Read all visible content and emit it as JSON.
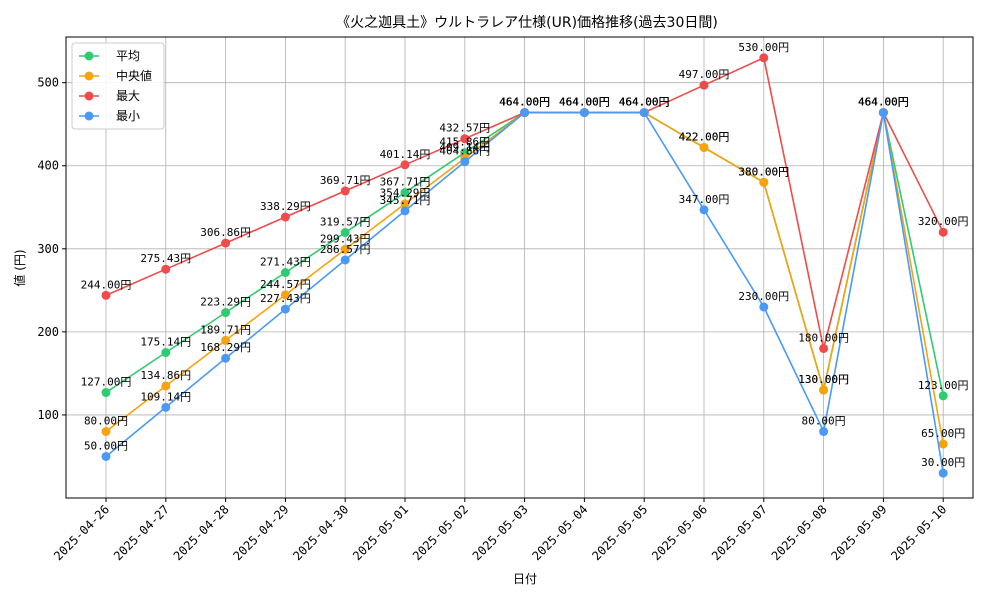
{
  "chart_data": {
    "type": "line",
    "title": "《火之迦具土》ウルトラレア仕様(UR)価格推移(過去30日間)",
    "xlabel": "日付",
    "ylabel": "値 (円)",
    "ylim": [
      0,
      555
    ],
    "yticks": [
      100,
      200,
      300,
      400,
      500
    ],
    "grid": true,
    "legend_position": "top-left",
    "label_suffix": "円",
    "categories": [
      "2025-04-26",
      "2025-04-27",
      "2025-04-28",
      "2025-04-29",
      "2025-04-30",
      "2025-05-01",
      "2025-05-02",
      "2025-05-03",
      "2025-05-04",
      "2025-05-05",
      "2025-05-06",
      "2025-05-07",
      "2025-05-08",
      "2025-05-09",
      "2025-05-10"
    ],
    "series": [
      {
        "name": "平均",
        "color": "#2ecc71",
        "values": [
          127.0,
          175.14,
          223.29,
          271.43,
          319.57,
          367.71,
          415.86,
          464.0,
          464.0,
          464.0,
          422.0,
          380.0,
          130.0,
          464.0,
          123.0
        ]
      },
      {
        "name": "中央値",
        "color": "#f5a30f",
        "values": [
          80.0,
          134.86,
          189.71,
          244.57,
          299.43,
          354.29,
          409.14,
          464.0,
          464.0,
          464.0,
          422.0,
          380.0,
          130.0,
          464.0,
          65.0
        ]
      },
      {
        "name": "最大",
        "color": "#ef4b4b",
        "values": [
          244.0,
          275.43,
          306.86,
          338.29,
          369.71,
          401.14,
          432.57,
          464.0,
          464.0,
          464.0,
          497.0,
          530.0,
          180.0,
          464.0,
          320.0
        ]
      },
      {
        "name": "最小",
        "color": "#4a9af5",
        "values": [
          50.0,
          109.14,
          168.29,
          227.43,
          286.57,
          345.71,
          404.86,
          464.0,
          464.0,
          464.0,
          347.0,
          230.0,
          80.0,
          464.0,
          30.0
        ]
      }
    ]
  }
}
